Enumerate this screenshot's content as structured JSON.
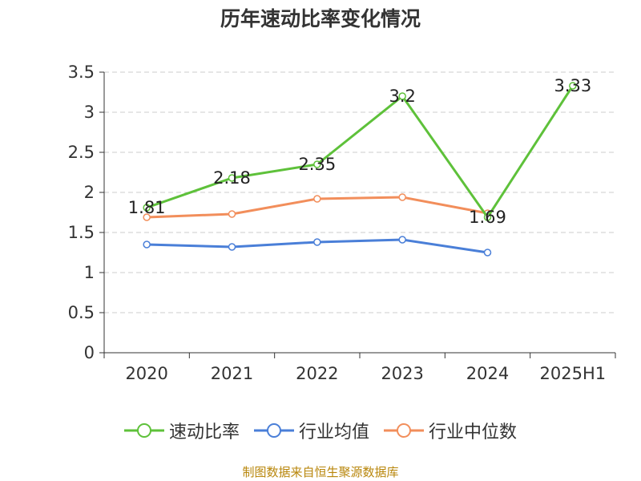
{
  "chart_data": {
    "type": "line",
    "title": "历年速动比率变化情况",
    "categories": [
      "2020",
      "2021",
      "2022",
      "2023",
      "2024",
      "2025H1"
    ],
    "ylim": [
      0,
      3.5
    ],
    "yticks": [
      "0",
      "0.5",
      "1",
      "1.5",
      "2",
      "2.5",
      "3",
      "3.5"
    ],
    "grid": true,
    "legend_position": "bottom",
    "series": [
      {
        "name": "速动比率",
        "color": "#5ec13a",
        "values": [
          1.81,
          2.18,
          2.35,
          3.2,
          1.69,
          3.33
        ],
        "labels": [
          "1.81",
          "2.18",
          "2.35",
          "3.2",
          "1.69",
          "3.33"
        ]
      },
      {
        "name": "行业均值",
        "color": "#4a7fd8",
        "values": [
          1.35,
          1.32,
          1.38,
          1.41,
          1.25,
          null
        ]
      },
      {
        "name": "行业中位数",
        "color": "#f28e5b",
        "values": [
          1.69,
          1.73,
          1.92,
          1.94,
          1.74,
          null
        ]
      }
    ]
  },
  "source": "制图数据来自恒生聚源数据库"
}
